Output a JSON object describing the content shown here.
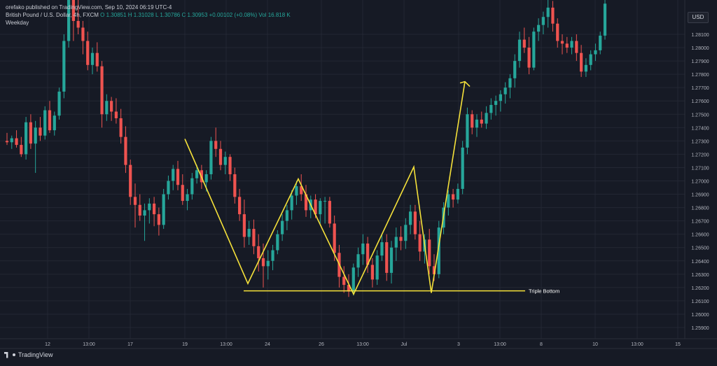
{
  "header": {
    "published": "orefako published on TradingView.com, Sep 10, 2024 06:19 UTC-4",
    "symbol": "British Pound / U.S. Dollar, 4h, FXCM",
    "open": "O 1.30851",
    "high": "H 1.31028",
    "low": "L 1.30786",
    "close": "C 1.30953",
    "change": "+0.00102 (+0.08%)",
    "volume": "Vol 16.818 K",
    "indicator": "Weekday"
  },
  "currency": "USD",
  "brand": "TradingView",
  "colors": {
    "background": "#161a25",
    "up": "#26a69a",
    "down": "#ef5350",
    "annotation": "#f5e13a",
    "grid": "#232733",
    "text": "#b2b5be"
  },
  "chart_data": {
    "type": "candlestick",
    "y_axis": {
      "range": [
        1.259,
        1.2835
      ],
      "ticks": [
        "1.28100",
        "1.28000",
        "1.27900",
        "1.27800",
        "1.27700",
        "1.27600",
        "1.27500",
        "1.27400",
        "1.27300",
        "1.27200",
        "1.27100",
        "1.27000",
        "1.26900",
        "1.26800",
        "1.26700",
        "1.26600",
        "1.26500",
        "1.26400",
        "1.26300",
        "1.26200",
        "1.26100",
        "1.26000",
        "1.25900"
      ]
    },
    "x_axis": {
      "ticks": [
        "12",
        "13:00",
        "17",
        "19",
        "13:00",
        "24",
        "26",
        "13:00",
        "Jul",
        "3",
        "13:00",
        "8",
        "10",
        "13:00",
        "15"
      ]
    },
    "candles": [
      [
        1.273,
        1.2736,
        1.2727,
        1.2729
      ],
      [
        1.2729,
        1.2734,
        1.2724,
        1.2732
      ],
      [
        1.2732,
        1.2738,
        1.2725,
        1.2727
      ],
      [
        1.2727,
        1.2733,
        1.2718,
        1.272
      ],
      [
        1.272,
        1.2748,
        1.2716,
        1.2744
      ],
      [
        1.2744,
        1.275,
        1.2724,
        1.2728
      ],
      [
        1.2728,
        1.2745,
        1.2706,
        1.274
      ],
      [
        1.274,
        1.2748,
        1.273,
        1.2734
      ],
      [
        1.2734,
        1.2756,
        1.2731,
        1.2753
      ],
      [
        1.2753,
        1.276,
        1.2736,
        1.2738
      ],
      [
        1.2738,
        1.2752,
        1.2734,
        1.2749
      ],
      [
        1.2749,
        1.277,
        1.2746,
        1.2767
      ],
      [
        1.2767,
        1.281,
        1.2762,
        1.2805
      ],
      [
        1.2805,
        1.2875,
        1.28,
        1.2855
      ],
      [
        1.2855,
        1.287,
        1.2805,
        1.282
      ],
      [
        1.282,
        1.285,
        1.281,
        1.2815
      ],
      [
        1.2815,
        1.282,
        1.2795,
        1.2805
      ],
      [
        1.2805,
        1.2812,
        1.2783,
        1.2787
      ],
      [
        1.2787,
        1.28,
        1.278,
        1.2796
      ],
      [
        1.2796,
        1.2804,
        1.2782,
        1.2786
      ],
      [
        1.2786,
        1.279,
        1.274,
        1.275
      ],
      [
        1.275,
        1.2765,
        1.2745,
        1.276
      ],
      [
        1.276,
        1.2763,
        1.2745,
        1.2752
      ],
      [
        1.2752,
        1.2762,
        1.2743,
        1.2747
      ],
      [
        1.2747,
        1.2754,
        1.2728,
        1.2733
      ],
      [
        1.2733,
        1.2741,
        1.2706,
        1.2712
      ],
      [
        1.2712,
        1.2716,
        1.2682,
        1.2688
      ],
      [
        1.2688,
        1.2698,
        1.2665,
        1.2682
      ],
      [
        1.2682,
        1.269,
        1.267,
        1.2674
      ],
      [
        1.2674,
        1.2683,
        1.2655,
        1.2678
      ],
      [
        1.2678,
        1.2687,
        1.2668,
        1.2683
      ],
      [
        1.2683,
        1.2688,
        1.2666,
        1.2675
      ],
      [
        1.2675,
        1.268,
        1.2659,
        1.2667
      ],
      [
        1.2667,
        1.2694,
        1.2664,
        1.269
      ],
      [
        1.269,
        1.2704,
        1.2686,
        1.27
      ],
      [
        1.27,
        1.2712,
        1.2693,
        1.2709
      ],
      [
        1.2709,
        1.2715,
        1.2693,
        1.2697
      ],
      [
        1.2697,
        1.2705,
        1.2682,
        1.2685
      ],
      [
        1.2685,
        1.2694,
        1.2678,
        1.269
      ],
      [
        1.269,
        1.2706,
        1.2686,
        1.2702
      ],
      [
        1.2702,
        1.2712,
        1.2698,
        1.2708
      ],
      [
        1.2708,
        1.2712,
        1.2694,
        1.2699
      ],
      [
        1.2699,
        1.2708,
        1.2692,
        1.2705
      ],
      [
        1.2705,
        1.2733,
        1.2701,
        1.273
      ],
      [
        1.273,
        1.274,
        1.2718,
        1.2724
      ],
      [
        1.2724,
        1.273,
        1.2708,
        1.2712
      ],
      [
        1.2712,
        1.2722,
        1.2705,
        1.2718
      ],
      [
        1.2718,
        1.272,
        1.27,
        1.2705
      ],
      [
        1.2705,
        1.271,
        1.2683,
        1.2688
      ],
      [
        1.2688,
        1.2694,
        1.267,
        1.2675
      ],
      [
        1.2675,
        1.2686,
        1.265,
        1.2658
      ],
      [
        1.2658,
        1.267,
        1.2652,
        1.2664
      ],
      [
        1.2664,
        1.2671,
        1.2645,
        1.2651
      ],
      [
        1.2651,
        1.266,
        1.2632,
        1.2642
      ],
      [
        1.2642,
        1.2653,
        1.262,
        1.2636
      ],
      [
        1.2636,
        1.2648,
        1.2626,
        1.264
      ],
      [
        1.264,
        1.2652,
        1.2633,
        1.2648
      ],
      [
        1.2648,
        1.2663,
        1.2645,
        1.266
      ],
      [
        1.266,
        1.2675,
        1.2655,
        1.267
      ],
      [
        1.267,
        1.2682,
        1.2663,
        1.2678
      ],
      [
        1.2678,
        1.2693,
        1.2671,
        1.2689
      ],
      [
        1.2689,
        1.27,
        1.2682,
        1.2696
      ],
      [
        1.2696,
        1.2705,
        1.2685,
        1.269
      ],
      [
        1.269,
        1.2697,
        1.2673,
        1.2678
      ],
      [
        1.2678,
        1.2689,
        1.2672,
        1.2686
      ],
      [
        1.2686,
        1.269,
        1.2672,
        1.2675
      ],
      [
        1.2675,
        1.2687,
        1.2668,
        1.2685
      ],
      [
        1.2685,
        1.2688,
        1.2668,
        1.2685
      ],
      [
        1.2685,
        1.2688,
        1.2665,
        1.2668
      ],
      [
        1.2668,
        1.2674,
        1.264,
        1.2646
      ],
      [
        1.2646,
        1.2652,
        1.262,
        1.2628
      ],
      [
        1.2628,
        1.2636,
        1.2616,
        1.2622
      ],
      [
        1.2622,
        1.263,
        1.2613,
        1.2617
      ],
      [
        1.2617,
        1.2638,
        1.2614,
        1.2635
      ],
      [
        1.2635,
        1.265,
        1.2628,
        1.2645
      ],
      [
        1.2645,
        1.266,
        1.2637,
        1.2653
      ],
      [
        1.2653,
        1.2658,
        1.2631,
        1.2637
      ],
      [
        1.2637,
        1.2642,
        1.262,
        1.2626
      ],
      [
        1.2626,
        1.2648,
        1.2622,
        1.2644
      ],
      [
        1.2644,
        1.266,
        1.264,
        1.2654
      ],
      [
        1.2654,
        1.266,
        1.2625,
        1.2631
      ],
      [
        1.2631,
        1.2655,
        1.2623,
        1.265
      ],
      [
        1.265,
        1.2665,
        1.264,
        1.2658
      ],
      [
        1.2658,
        1.2666,
        1.2648,
        1.2655
      ],
      [
        1.2655,
        1.2672,
        1.2649,
        1.2667
      ],
      [
        1.2667,
        1.2682,
        1.266,
        1.2677
      ],
      [
        1.2677,
        1.2682,
        1.2656,
        1.266
      ],
      [
        1.266,
        1.267,
        1.264,
        1.2647
      ],
      [
        1.2647,
        1.266,
        1.2638,
        1.2656
      ],
      [
        1.2656,
        1.2664,
        1.263,
        1.2636
      ],
      [
        1.2636,
        1.2645,
        1.2625,
        1.263
      ],
      [
        1.263,
        1.267,
        1.2627,
        1.2665
      ],
      [
        1.2665,
        1.2684,
        1.266,
        1.268
      ],
      [
        1.268,
        1.2693,
        1.2674,
        1.269
      ],
      [
        1.269,
        1.2694,
        1.268,
        1.2686
      ],
      [
        1.2686,
        1.2698,
        1.2683,
        1.2694
      ],
      [
        1.2694,
        1.273,
        1.269,
        1.2725
      ],
      [
        1.2725,
        1.2755,
        1.272,
        1.275
      ],
      [
        1.275,
        1.2753,
        1.2735,
        1.274
      ],
      [
        1.274,
        1.275,
        1.2733,
        1.2746
      ],
      [
        1.2746,
        1.2752,
        1.274,
        1.2743
      ],
      [
        1.2743,
        1.2756,
        1.2739,
        1.2751
      ],
      [
        1.2751,
        1.2762,
        1.2746,
        1.2757
      ],
      [
        1.2757,
        1.2764,
        1.2749,
        1.276
      ],
      [
        1.276,
        1.2768,
        1.2752,
        1.2765
      ],
      [
        1.2765,
        1.2774,
        1.2758,
        1.277
      ],
      [
        1.277,
        1.278,
        1.2762,
        1.2777
      ],
      [
        1.2777,
        1.2795,
        1.277,
        1.279
      ],
      [
        1.279,
        1.2812,
        1.2785,
        1.2806
      ],
      [
        1.2806,
        1.2815,
        1.2796,
        1.28
      ],
      [
        1.28,
        1.2808,
        1.278,
        1.2785
      ],
      [
        1.2785,
        1.2815,
        1.2783,
        1.2812
      ],
      [
        1.2812,
        1.2822,
        1.2805,
        1.2817
      ],
      [
        1.2817,
        1.2827,
        1.281,
        1.2823
      ],
      [
        1.2823,
        1.2836,
        1.2815,
        1.283
      ],
      [
        1.283,
        1.2835,
        1.2812,
        1.2818
      ],
      [
        1.2818,
        1.2822,
        1.28,
        1.2805
      ],
      [
        1.2805,
        1.281,
        1.2795,
        1.2803
      ],
      [
        1.2803,
        1.2808,
        1.2796,
        1.28
      ],
      [
        1.28,
        1.2808,
        1.2795,
        1.2805
      ],
      [
        1.2805,
        1.281,
        1.279,
        1.2796
      ],
      [
        1.2796,
        1.2802,
        1.2778,
        1.2782
      ],
      [
        1.2782,
        1.2792,
        1.2778,
        1.2787
      ],
      [
        1.2787,
        1.2798,
        1.2783,
        1.2795
      ],
      [
        1.2795,
        1.2803,
        1.279,
        1.2798
      ],
      [
        1.2798,
        1.2812,
        1.2795,
        1.2809
      ],
      [
        1.2809,
        1.2836,
        1.2806,
        1.2833
      ]
    ],
    "annotation": {
      "label": "Triple Bottom",
      "support_level": 1.26175,
      "type": "zigzag"
    }
  }
}
